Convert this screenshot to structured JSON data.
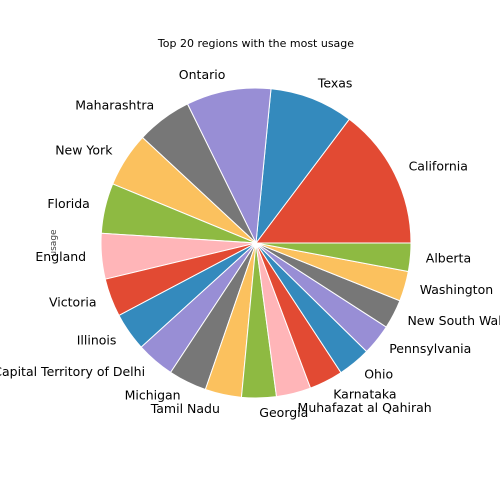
{
  "chart_data": {
    "type": "pie",
    "title": "Top 20 regions with the most usage",
    "ylabel": "usage",
    "start_angle_deg": 0,
    "direction": "counterclockwise",
    "categories": [
      "California",
      "Texas",
      "Ontario",
      "Maharashtra",
      "New York",
      "Florida",
      "England",
      "Victoria",
      "Illinois",
      "National Capital Territory of Delhi",
      "Michigan",
      "Tamil Nadu",
      "Georgia",
      "Muhafazat al Qahirah",
      "Karnataka",
      "Ohio",
      "Pennsylvania",
      "New South Wales",
      "Washington",
      "Alberta"
    ],
    "values": [
      15.5,
      9.2,
      9.3,
      6.1,
      6.0,
      5.5,
      5.0,
      4.2,
      4.2,
      4.2,
      4.2,
      4.0,
      3.8,
      3.8,
      3.7,
      3.6,
      3.4,
      3.2,
      3.3,
      3.1
    ],
    "colors": [
      "#E24A33",
      "#348ABD",
      "#988ED5",
      "#777777",
      "#FBC15E",
      "#8EBA42",
      "#FFB5B8",
      "#E24A33",
      "#348ABD",
      "#988ED5",
      "#777777",
      "#FBC15E",
      "#8EBA42",
      "#FFB5B8",
      "#E24A33",
      "#348ABD",
      "#988ED5",
      "#777777",
      "#FBC15E",
      "#8EBA42"
    ]
  }
}
